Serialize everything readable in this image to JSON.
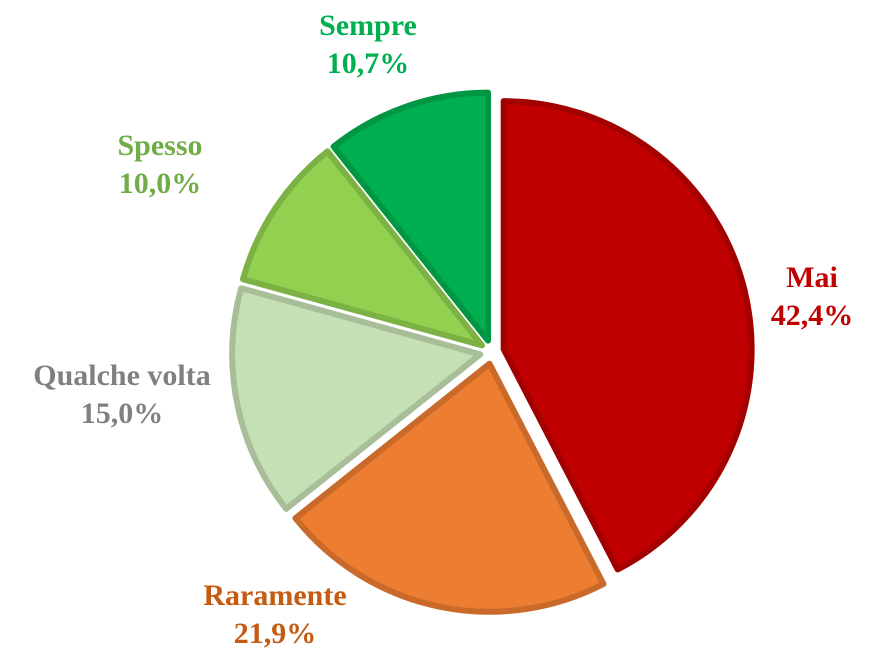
{
  "chart_data": {
    "type": "pie",
    "categories": [
      "Mai",
      "Raramente",
      "Qualche volta",
      "Spesso",
      "Sempre"
    ],
    "values": [
      42.4,
      21.9,
      15.0,
      10.0,
      10.7
    ],
    "value_labels": [
      "42,4%",
      "21,9%",
      "15,0%",
      "10,0%",
      "10,7%"
    ],
    "colors": [
      "#c00000",
      "#ed7d31",
      "#c5e0b4",
      "#92d050",
      "#00b050"
    ],
    "label_colors": [
      "#c00000",
      "#c55a11",
      "#808080",
      "#70ad47",
      "#00b050"
    ]
  }
}
